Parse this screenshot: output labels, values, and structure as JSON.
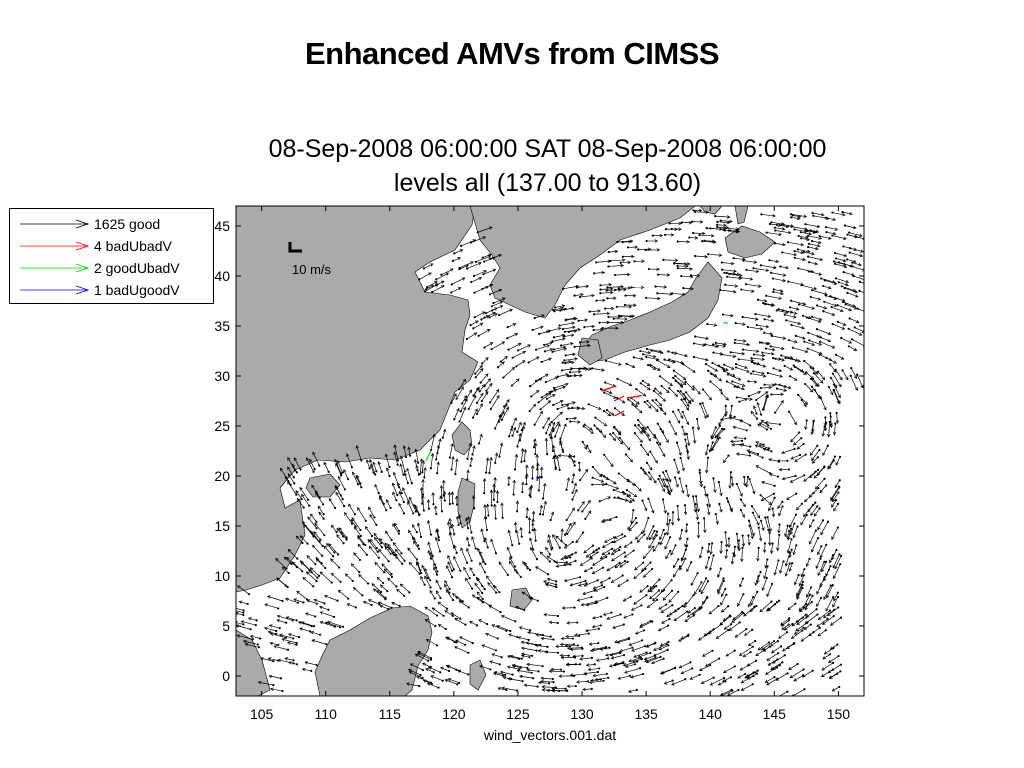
{
  "slide": {
    "title": "Enhanced AMVs from CIMSS"
  },
  "chart_data": {
    "type": "vector-field map",
    "title_line1": "08-Sep-2008 06:00:00 SAT 08-Sep-2008 06:00:00",
    "title_line2": "levels all (137.00 to 913.60)",
    "xlabel": "wind_vectors.001.dat",
    "ylabel": "",
    "xlim": [
      103,
      152
    ],
    "ylim": [
      -2,
      47
    ],
    "x_ticks": [
      105,
      110,
      115,
      120,
      125,
      130,
      135,
      140,
      145,
      150
    ],
    "y_ticks": [
      0,
      5,
      10,
      15,
      20,
      25,
      30,
      35,
      40,
      45
    ],
    "grid": false,
    "legend_placement": "left, outside plot",
    "legend": [
      {
        "label": "1625 good",
        "color": "#000000"
      },
      {
        "label": "4 badUbadV",
        "color": "#ff0000"
      },
      {
        "label": "2 goodUbadV",
        "color": "#00dd00"
      },
      {
        "label": "1 badUgoodV",
        "color": "#0000ff"
      }
    ],
    "scale_reference": "10 m/s",
    "land_color": "#aaaaaa",
    "special_vectors": [
      {
        "category": "badUbadV",
        "lon": 131.5,
        "lat": 28.5,
        "u": 3,
        "v": 1
      },
      {
        "category": "badUbadV",
        "lon": 132.5,
        "lat": 27.5,
        "u": 2,
        "v": 1
      },
      {
        "category": "badUbadV",
        "lon": 133.5,
        "lat": 27.8,
        "u": 3,
        "v": 0.5
      },
      {
        "category": "badUbadV",
        "lon": 132.5,
        "lat": 26.0,
        "u": 2,
        "v": 1
      },
      {
        "category": "goodUbadV",
        "lon": 118.2,
        "lat": 22.5,
        "u": -1,
        "v": -2
      },
      {
        "category": "goodUbadV",
        "lon": 141.0,
        "lat": 35.3,
        "u": 1,
        "v": 0
      },
      {
        "category": "badUgoodV",
        "lon": 126.5,
        "lat": 20.0,
        "u": 0,
        "v": -1
      }
    ]
  }
}
